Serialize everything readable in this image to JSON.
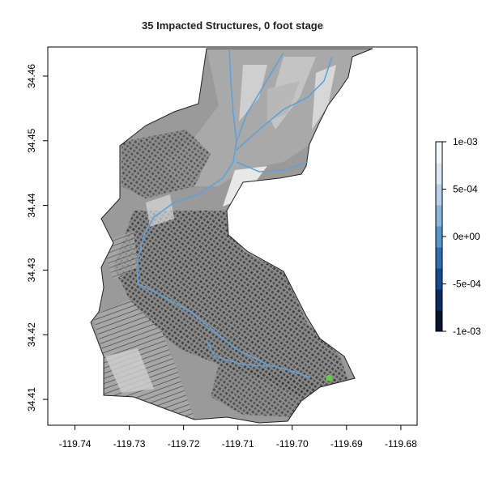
{
  "title": "35 Impacted Structures, 0 foot stage",
  "x_axis": {
    "ticks": [
      "-119.74",
      "-119.73",
      "-119.72",
      "-119.71",
      "-119.70",
      "-119.69",
      "-119.68"
    ],
    "range": [
      -119.745,
      -119.677
    ]
  },
  "y_axis": {
    "ticks": [
      "34.41",
      "34.42",
      "34.43",
      "34.44",
      "34.45",
      "34.46"
    ],
    "range": [
      34.406,
      34.4645
    ]
  },
  "legend": {
    "labels": [
      "1e-03",
      "5e-04",
      "0e+00",
      "-5e-04",
      "-1e-03"
    ],
    "range": [
      -0.001,
      0.001
    ],
    "colors": [
      "#08142e",
      "#0d2b5e",
      "#174a8c",
      "#2f6fb0",
      "#5a97c9",
      "#8ab6da",
      "#b7d1e8",
      "#dce8f3",
      "#f4f8fc"
    ]
  },
  "map": {
    "basemap_color": "#9a9a9a",
    "stream_color": "#5fa2d9",
    "marker_color": "#5ad13a",
    "marker_location": [
      -119.6932,
      34.4133
    ]
  }
}
